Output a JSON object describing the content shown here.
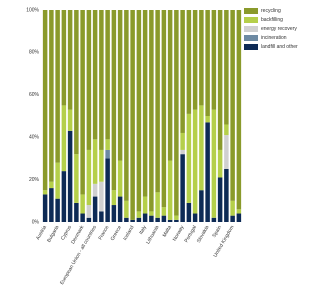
{
  "chart_data": {
    "type": "stacked-bar",
    "categories": [
      "Austria",
      null,
      "Bulgaria",
      null,
      "Cyprus",
      null,
      "Denmark",
      null,
      "European Union - all countries",
      null,
      "France",
      null,
      "Greece",
      null,
      "Iceland",
      null,
      "Italy",
      null,
      "Lithuania",
      null,
      "Malta",
      null,
      "Norway",
      null,
      "Portugal",
      null,
      "Slovakia",
      null,
      "Spain",
      null,
      "United Kingdom",
      null
    ],
    "series": [
      {
        "name": "recycling",
        "color": "#8a9a2b",
        "values": [
          85,
          81,
          72,
          45,
          47,
          68,
          87,
          66,
          61,
          66,
          61,
          85,
          71,
          90,
          99,
          95,
          88,
          95,
          86,
          93,
          71,
          97,
          58,
          49,
          47,
          45,
          50,
          47,
          66,
          54,
          90,
          94
        ]
      },
      {
        "name": "backfilling",
        "color": "#b5cf4a",
        "values": [
          2,
          3,
          17,
          31,
          10,
          23,
          9,
          26,
          21,
          15,
          5,
          7,
          17,
          8,
          0,
          3,
          8,
          2,
          12,
          4,
          28,
          2,
          8,
          42,
          49,
          40,
          3,
          51,
          13,
          5,
          7,
          2
        ]
      },
      {
        "name": "energy recovery",
        "color": "#d0d0d0",
        "values": [
          0,
          0,
          0,
          0,
          0,
          0,
          0,
          6,
          6,
          14,
          0,
          0,
          0,
          0,
          0,
          0,
          0,
          0,
          0,
          0,
          0,
          0,
          2,
          0,
          0,
          0,
          0,
          0,
          0,
          16,
          0,
          0
        ]
      },
      {
        "name": "incineration",
        "color": "#6d8aa3",
        "values": [
          0,
          0,
          0,
          0,
          0,
          0,
          0,
          0,
          0,
          0,
          4,
          0,
          0,
          0,
          0,
          0,
          0,
          0,
          0,
          0,
          0,
          0,
          0,
          0,
          0,
          0,
          0,
          0,
          0,
          0,
          0,
          0
        ]
      },
      {
        "name": "landfill and other",
        "color": "#0d2a55",
        "values": [
          13,
          16,
          11,
          24,
          43,
          9,
          4,
          2,
          12,
          5,
          30,
          8,
          12,
          2,
          1,
          2,
          4,
          3,
          2,
          3,
          1,
          1,
          32,
          9,
          4,
          15,
          47,
          2,
          21,
          25,
          3,
          4
        ]
      }
    ],
    "ylim": [
      0,
      100
    ],
    "yticks": [
      {
        "value": 0,
        "label": "0%"
      },
      {
        "value": 20,
        "label": "20%"
      },
      {
        "value": 40,
        "label": "40%"
      },
      {
        "value": 60,
        "label": "60%"
      },
      {
        "value": 80,
        "label": "80%"
      },
      {
        "value": 100,
        "label": "100%"
      }
    ],
    "legend": "right"
  }
}
